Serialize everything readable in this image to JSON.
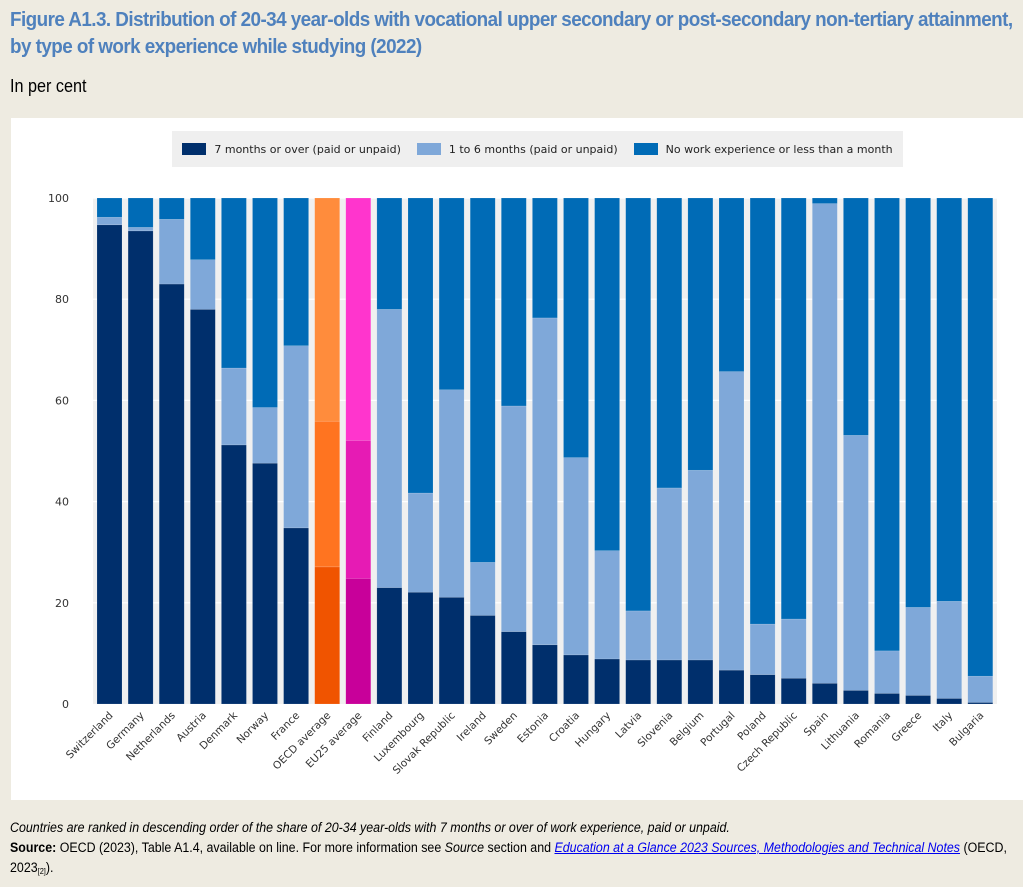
{
  "header": {
    "title": "Figure A1.3. Distribution of 20-34 year-olds with vocational upper secondary or post-secondary non-tertiary attainment, by type of work experience while studying (2022)",
    "subtitle": "In per cent"
  },
  "legend": [
    {
      "label": "7 months or over (paid or unpaid)",
      "color": "#002f6c"
    },
    {
      "label": "1 to 6 months (paid or unpaid)",
      "color": "#7fa8d9"
    },
    {
      "label": "No work experience or less than a month",
      "color": "#006bb6"
    }
  ],
  "highlight_colors": {
    "OECD average": [
      "#f05400",
      "#ff7420",
      "#ff8c3c"
    ],
    "EU25 average": [
      "#c8009a",
      "#e61bb4",
      "#ff35cd"
    ]
  },
  "chart_data": {
    "type": "bar",
    "stacked": true,
    "percent_stacked": true,
    "title": "Figure A1.3. Distribution of 20-34 year-olds with vocational upper secondary or post-secondary non-tertiary attainment, by type of work experience while studying (2022)",
    "subtitle": "In per cent",
    "xlabel": "",
    "ylabel": "",
    "ylim": [
      0,
      100
    ],
    "yticks": [
      0,
      20,
      40,
      60,
      80,
      100
    ],
    "grid": true,
    "legend_position": "top-center",
    "categories": [
      "Switzerland",
      "Germany",
      "Netherlands",
      "Austria",
      "Denmark",
      "Norway",
      "France",
      "OECD average",
      "EU25 average",
      "Finland",
      "Luxembourg",
      "Slovak Republic",
      "Ireland",
      "Sweden",
      "Estonia",
      "Croatia",
      "Hungary",
      "Latvia",
      "Slovenia",
      "Belgium",
      "Portugal",
      "Poland",
      "Czech Republic",
      "Spain",
      "Lithuania",
      "Romania",
      "Greece",
      "Italy",
      "Bulgaria"
    ],
    "series": [
      {
        "name": "7 months or over (paid or unpaid)",
        "values": [
          94.7,
          93.5,
          83.0,
          78.0,
          51.2,
          47.6,
          34.8,
          27.1,
          24.8,
          23.0,
          22.1,
          21.1,
          17.5,
          14.3,
          11.7,
          9.7,
          8.9,
          8.7,
          8.7,
          8.7,
          6.7,
          5.8,
          5.1,
          4.1,
          2.7,
          2.1,
          1.7,
          1.1,
          0.3
        ]
      },
      {
        "name": "1 to 6 months (paid or unpaid)",
        "values": [
          1.5,
          0.7,
          12.8,
          9.8,
          15.2,
          11.0,
          36.0,
          28.8,
          27.3,
          55.0,
          19.6,
          41.0,
          10.5,
          44.6,
          64.6,
          39.0,
          21.4,
          9.7,
          34.0,
          37.5,
          59.0,
          10.0,
          11.7,
          94.8,
          50.4,
          8.4,
          17.4,
          19.2,
          5.2
        ]
      },
      {
        "name": "No work experience or less than a month",
        "values": [
          3.8,
          5.8,
          4.2,
          12.2,
          33.6,
          41.4,
          29.2,
          44.1,
          47.9,
          22.0,
          58.3,
          37.9,
          72.0,
          41.1,
          23.7,
          51.3,
          69.7,
          81.6,
          57.3,
          53.8,
          34.3,
          84.2,
          83.2,
          1.1,
          46.9,
          89.5,
          80.9,
          79.7,
          94.5
        ]
      }
    ]
  },
  "footer": {
    "note": "Countries are ranked in descending order of the share of 20-34 year-olds with 7 months or over of work experience, paid or unpaid.",
    "source_label": "Source:",
    "source_text_1": " OECD (2023), Table A1.4, available on line. For more information see ",
    "source_italic": "Source",
    "source_text_2": " section and ",
    "link_text": "Education at a Glance 2023 Sources, Methodologies and Technical Notes",
    "source_text_3": " (OECD, 2023",
    "ref": "[2]",
    "source_text_4": ")."
  }
}
